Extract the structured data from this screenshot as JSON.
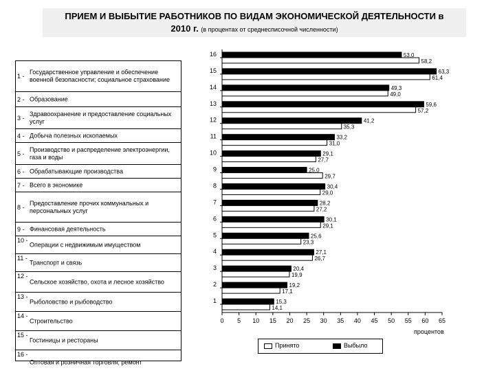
{
  "title": {
    "line1": "ПРИЕМ И ВЫБЫТИЕ РАБОТНИКОВ ПО ВИДАМ ЭКОНОМИЧЕСКОЙ ДЕЯТЕЛЬНОСТИ в",
    "year": "2010 г.",
    "subtitle": "(в процентах от среднесписочной численности)"
  },
  "categories_table": [
    {
      "num": "1 -",
      "label": "Государственное управление и обеспечение военной безопасности; социальное страхование"
    },
    {
      "num": "2 -",
      "label": "Образование"
    },
    {
      "num": "3 -",
      "label": "Здравоохранение и предоставление социальных услуг"
    },
    {
      "num": "4 -",
      "label": "Добыча полезных ископаемых"
    },
    {
      "num": "5 -",
      "label": "Производство и распределение электроэнергии, газа и воды"
    },
    {
      "num": "6 -",
      "label": "Обрабатывающие производства"
    },
    {
      "num": "7 -",
      "label": "Всего в экономике"
    },
    {
      "num": "8 -",
      "label": "Предоставление прочих коммунальных и персональных услуг"
    },
    {
      "num": "9 -",
      "label": "Финансовая деятельность"
    },
    {
      "num": "10 -",
      "label": "Операции с недвижимым имуществом"
    },
    {
      "num": "11 -",
      "label": "Транспорт и связь"
    },
    {
      "num": "12 -",
      "label": "Сельское хозяйство, охота и лесное хозяйство"
    },
    {
      "num": "13 -",
      "label": "Рыболовство и рыбоводство"
    },
    {
      "num": "14 -",
      "label": "Строительство"
    },
    {
      "num": "15 -",
      "label": "Гостиницы и рестораны"
    },
    {
      "num": "16 -",
      "label": "Оптовая и розничная торговля; ремонт"
    }
  ],
  "chart_data": {
    "type": "bar",
    "orientation": "horizontal",
    "categories": [
      "1",
      "2",
      "3",
      "4",
      "5",
      "6",
      "7",
      "8",
      "9",
      "10",
      "11",
      "12",
      "13",
      "14",
      "15",
      "16"
    ],
    "series": [
      {
        "name": "Принято",
        "color": "#ffffff",
        "values": [
          14.1,
          17.1,
          19.9,
          26.7,
          23.3,
          29.1,
          27.2,
          29.0,
          29.7,
          27.7,
          31.0,
          35.3,
          57.2,
          49.0,
          61.4,
          58.2
        ],
        "labels": [
          "14,1",
          "17,1",
          "19,9",
          "26,7",
          "23,3",
          "29,1",
          "27,2",
          "29,0",
          "29,7",
          "27,7",
          "31,0",
          "35,3",
          "57,2",
          "49,0",
          "61,4",
          "58,2"
        ]
      },
      {
        "name": "Выбыло",
        "color": "#000000",
        "values": [
          15.3,
          19.2,
          20.4,
          27.1,
          25.6,
          30.1,
          28.2,
          30.4,
          25.0,
          29.1,
          33.2,
          41.2,
          59.6,
          49.3,
          63.3,
          53.0
        ],
        "labels": [
          "15,3",
          "19,2",
          "20,4",
          "27,1",
          "25,6",
          "30,1",
          "28,2",
          "30,4",
          "25,0",
          "29,1",
          "33,2",
          "41,2",
          "59,6",
          "49,3",
          "63,3",
          "53,0"
        ]
      }
    ],
    "xlim": [
      0,
      65
    ],
    "xticks": [
      "0",
      "5",
      "10",
      "15",
      "20",
      "25",
      "30",
      "35",
      "40",
      "45",
      "50",
      "55",
      "60",
      "65"
    ],
    "xlabel": "процентов",
    "legend_position": "bottom"
  }
}
